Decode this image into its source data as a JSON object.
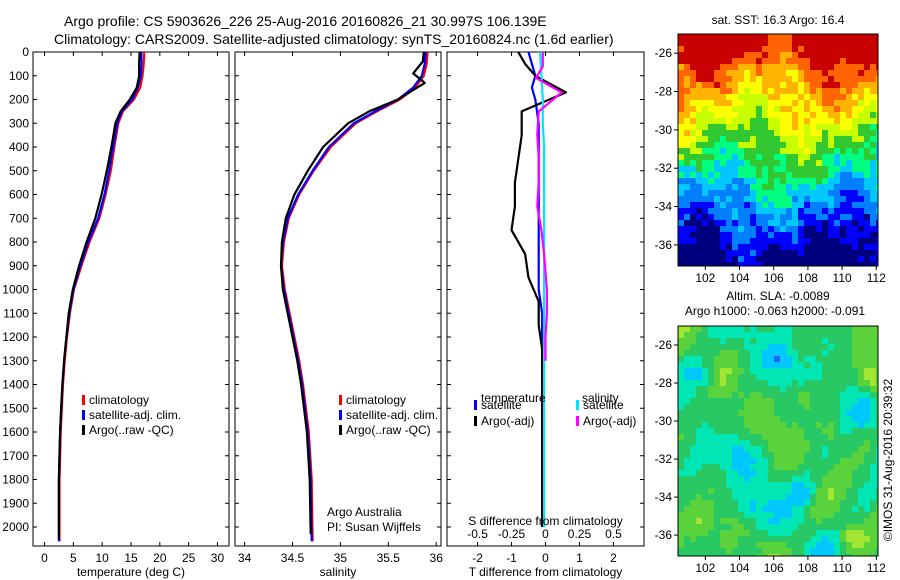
{
  "header": {
    "line1": "Argo profile: CS 5903626_226 25-Aug-2016 20160826_21 30.997S 106.139E",
    "line2": "Climatology: CARS2009. Satellite-adjusted climatology: synTS_20160824.nc (1.6d earlier)"
  },
  "colors": {
    "climatology": "#ff0000",
    "satellite": "#0000ff",
    "argo": "#000000",
    "satellite_s": "#00e5ff",
    "argo_s_adj": "#ff00ff"
  },
  "chart_data": [
    {
      "type": "line",
      "name": "temperature-profile",
      "xlabel": "temperature (deg C)",
      "xlim": [
        -2,
        32
      ],
      "xticks": [
        0,
        5,
        10,
        15,
        20,
        25,
        30
      ],
      "ylim": [
        2080,
        0
      ],
      "yticks": [
        0,
        100,
        200,
        300,
        400,
        500,
        600,
        700,
        800,
        900,
        1000,
        1100,
        1200,
        1300,
        1400,
        1500,
        1600,
        1700,
        1800,
        1900,
        2000
      ],
      "legend": [
        "climatology",
        "satellite-adj. clim.",
        "Argo(..raw -QC)"
      ],
      "series": [
        {
          "name": "climatology",
          "color": "#ff0000",
          "x": [
            17.3,
            17.2,
            17.0,
            16.6,
            15.5,
            13.6,
            12.8,
            12.1,
            11.5,
            10.6,
            9.5,
            7.8,
            6.4,
            5.1,
            4.4,
            3.9,
            3.5,
            3.2,
            3.0,
            2.8,
            2.6,
            2.6
          ],
          "y": [
            0,
            50,
            100,
            150,
            200,
            250,
            300,
            400,
            500,
            600,
            700,
            800,
            900,
            1000,
            1100,
            1200,
            1300,
            1400,
            1500,
            1600,
            1800,
            2060
          ]
        },
        {
          "name": "satellite-adj. clim.",
          "color": "#0000ff",
          "x": [
            16.8,
            16.8,
            16.7,
            16.2,
            15.2,
            13.4,
            12.6,
            11.9,
            11.2,
            10.4,
            9.3,
            7.6,
            6.2,
            5.0,
            4.3,
            3.8,
            3.4,
            3.1,
            2.9,
            2.7,
            2.5,
            2.5
          ],
          "y": [
            0,
            50,
            100,
            150,
            200,
            250,
            300,
            400,
            500,
            600,
            700,
            800,
            900,
            1000,
            1100,
            1200,
            1300,
            1400,
            1500,
            1600,
            1800,
            2060
          ]
        },
        {
          "name": "Argo(..raw -QC)",
          "color": "#000000",
          "x": [
            16.5,
            16.4,
            16.4,
            16.0,
            14.8,
            13.2,
            12.3,
            11.6,
            10.8,
            9.9,
            8.8,
            7.3,
            6.0,
            4.9,
            4.2,
            3.8,
            3.4,
            3.1,
            2.9,
            2.7,
            2.5,
            2.5
          ],
          "y": [
            0,
            50,
            100,
            150,
            200,
            250,
            300,
            400,
            500,
            600,
            700,
            800,
            900,
            1000,
            1100,
            1200,
            1300,
            1400,
            1500,
            1600,
            1800,
            2050
          ]
        }
      ]
    },
    {
      "type": "line",
      "name": "salinity-profile",
      "xlabel": "salinity",
      "xlim": [
        33.9,
        36.05
      ],
      "xticks": [
        34,
        34.5,
        35,
        35.5,
        36
      ],
      "xticklabels": [
        "34",
        "34.5",
        "35",
        "35.5",
        "36"
      ],
      "ylim": [
        2080,
        0
      ],
      "legend": [
        "climatology",
        "satellite-adj. clim.",
        "Argo(..raw -QC)"
      ],
      "annotation": [
        "Argo Australia",
        "PI: Susan Wijffels"
      ],
      "series": [
        {
          "name": "climatology",
          "color": "#ff0000",
          "x": [
            35.91,
            35.9,
            35.87,
            35.78,
            35.62,
            35.38,
            35.16,
            34.9,
            34.72,
            34.57,
            34.46,
            34.41,
            34.39,
            34.42,
            34.47,
            34.52,
            34.57,
            34.61,
            34.64,
            34.67,
            34.7,
            34.71
          ],
          "y": [
            0,
            50,
            100,
            150,
            200,
            250,
            300,
            400,
            500,
            600,
            700,
            800,
            900,
            1000,
            1100,
            1200,
            1300,
            1400,
            1500,
            1600,
            1800,
            2060
          ]
        },
        {
          "name": "satellite-adj. clim.",
          "color": "#0000ff",
          "x": [
            35.89,
            35.88,
            35.85,
            35.76,
            35.6,
            35.36,
            35.14,
            34.88,
            34.71,
            34.56,
            34.45,
            34.4,
            34.38,
            34.41,
            34.46,
            34.51,
            34.56,
            34.6,
            34.63,
            34.66,
            34.69,
            34.7
          ],
          "y": [
            0,
            50,
            100,
            150,
            200,
            250,
            300,
            400,
            500,
            600,
            700,
            800,
            900,
            1000,
            1100,
            1200,
            1300,
            1400,
            1500,
            1600,
            1800,
            2060
          ]
        },
        {
          "name": "Argo(..raw -QC)",
          "color": "#000000",
          "x": [
            35.87,
            35.86,
            35.76,
            35.88,
            35.6,
            35.3,
            35.08,
            34.82,
            34.66,
            34.52,
            34.43,
            34.39,
            34.38,
            34.4,
            34.45,
            34.5,
            34.55,
            34.59,
            34.62,
            34.65,
            34.68,
            34.69
          ],
          "y": [
            0,
            40,
            90,
            130,
            200,
            250,
            300,
            400,
            500,
            600,
            700,
            800,
            900,
            1000,
            1100,
            1200,
            1300,
            1400,
            1500,
            1600,
            1800,
            2030
          ]
        }
      ]
    },
    {
      "type": "line",
      "name": "difference-profile",
      "xlabel": "T difference from climatology",
      "top_axis_label": "S difference from climatology",
      "xlim": [
        -2.9,
        2.9
      ],
      "xticks": [
        -2,
        -1,
        0,
        1,
        2
      ],
      "top_ticks": [
        -0.5,
        -0.25,
        0,
        0.25,
        0.5
      ],
      "top_ticklabels": [
        "-0.5",
        "-0.25",
        "0",
        "0.25",
        "0.5"
      ],
      "ylim": [
        2080,
        0
      ],
      "legend_temperature": {
        "heading": "temperature",
        "items": [
          "satellite",
          "Argo(-adj)"
        ]
      },
      "legend_salinity": {
        "heading": "salinity",
        "items": [
          "satellite",
          "Argo(-adj)"
        ]
      },
      "series": [
        {
          "name": "temperature satellite",
          "color": "#0000ff",
          "x": [
            -0.5,
            -0.4,
            -0.3,
            -0.4,
            -0.3,
            -0.2,
            -0.2,
            -0.2,
            -0.2,
            -0.2,
            -0.2,
            -0.2,
            -0.2,
            -0.1,
            -0.1,
            -0.1,
            -0.1,
            -0.1,
            -0.1,
            -0.1,
            -0.1
          ],
          "y": [
            0,
            50,
            100,
            150,
            200,
            300,
            400,
            500,
            600,
            700,
            800,
            900,
            1000,
            1100,
            1200,
            1300,
            1400,
            1500,
            1600,
            1800,
            2000
          ]
        },
        {
          "name": "temperature Argo(-adj)",
          "color": "#000000",
          "x": [
            -0.8,
            -0.6,
            -0.3,
            0.6,
            -0.7,
            -0.7,
            -0.8,
            -0.9,
            -0.9,
            -1.0,
            -0.6,
            -0.5,
            -0.2,
            -0.2,
            -0.1,
            -0.1,
            -0.1,
            -0.1,
            -0.1,
            -0.1
          ],
          "y": [
            0,
            50,
            100,
            170,
            250,
            350,
            450,
            550,
            650,
            750,
            850,
            950,
            1050,
            1150,
            1250,
            1400,
            1550,
            1700,
            1850,
            2000
          ]
        },
        {
          "name": "salinity satellite",
          "color": "#00e5ff",
          "x": [
            -0.04,
            -0.03,
            -0.02,
            -0.02,
            -0.01,
            -0.01,
            -0.01,
            -0.01,
            -0.01,
            -0.01,
            -0.01,
            -0.01,
            -0.01,
            -0.01,
            -0.01,
            -0.01,
            -0.01
          ],
          "y": [
            0,
            100,
            200,
            300,
            400,
            500,
            600,
            700,
            800,
            900,
            1000,
            1200,
            1400,
            1600,
            1800,
            1900,
            2000
          ]
        },
        {
          "name": "salinity Argo(-adj)",
          "color": "#ff00ff",
          "x": [
            -0.02,
            -0.02,
            -0.07,
            0.12,
            -0.05,
            -0.06,
            -0.05,
            -0.05,
            -0.06,
            -0.03,
            -0.01,
            0.01,
            0.01,
            0.0,
            0.0
          ],
          "y": [
            0,
            60,
            110,
            170,
            250,
            350,
            450,
            550,
            650,
            750,
            850,
            1000,
            1100,
            1200,
            1300
          ]
        }
      ]
    },
    {
      "type": "heatmap",
      "name": "sst-map",
      "title": "sat. SST: 16.3 Argo: 16.4",
      "xlim": [
        100.4,
        112.1
      ],
      "ylim": [
        -37.1,
        -25.0
      ],
      "xticks": [
        102,
        104,
        106,
        108,
        110,
        112
      ],
      "yticks": [
        -26,
        -28,
        -30,
        -32,
        -34,
        -36
      ],
      "colormap": [
        "#00007f",
        "#0000ff",
        "#0080ff",
        "#00c8ff",
        "#00ff80",
        "#32c832",
        "#c8ff00",
        "#ffff00",
        "#ffb400",
        "#ff6400",
        "#c80000"
      ]
    },
    {
      "type": "heatmap",
      "name": "sla-map",
      "title": "Altim. SLA: -0.0089",
      "subtitle": "Argo h1000: -0.063 h2000: -0.091",
      "xlim": [
        100.4,
        112.1
      ],
      "ylim": [
        -37.1,
        -25.0
      ],
      "xticks": [
        102,
        104,
        106,
        108,
        110,
        112
      ],
      "yticks": [
        -26,
        -28,
        -30,
        -32,
        -34,
        -36
      ],
      "colormap": [
        "#1e64ff",
        "#00c8ff",
        "#00e6b4",
        "#28c864",
        "#5ad23c",
        "#a0e632",
        "#f0f000",
        "#ff9600"
      ]
    }
  ],
  "credit": "©IMOS 31-Aug-2016 20:39:32"
}
